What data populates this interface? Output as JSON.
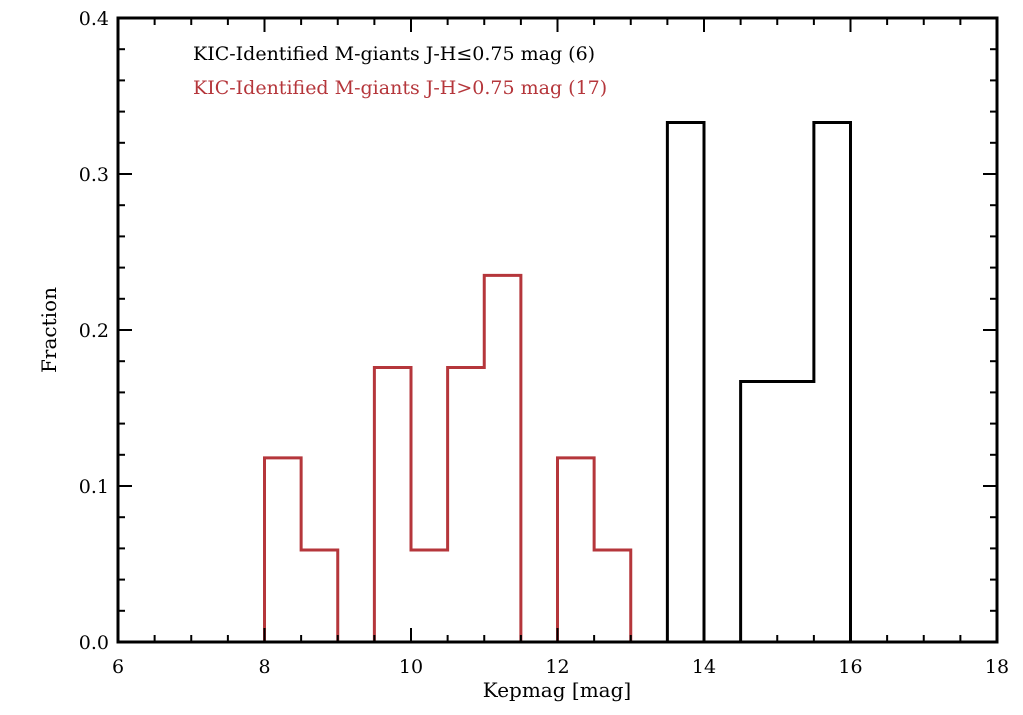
{
  "chart_data": {
    "type": "histogram",
    "xlabel": "Kepmag [mag]",
    "ylabel": "Fraction",
    "xlim": [
      6,
      18
    ],
    "ylim": [
      0,
      0.4
    ],
    "x_major_ticks": [
      6,
      8,
      10,
      12,
      14,
      16,
      18
    ],
    "x_minor_step": 0.5,
    "y_major_ticks": [
      0.0,
      0.1,
      0.2,
      0.3,
      0.4
    ],
    "y_minor_step": 0.02,
    "x_tick_labels": [
      "6",
      "8",
      "10",
      "12",
      "14",
      "16",
      "18"
    ],
    "y_tick_labels": [
      "0.0",
      "0.1",
      "0.2",
      "0.3",
      "0.4"
    ],
    "bin_width": 0.5,
    "grid": false,
    "legend_position": "top-left",
    "series": [
      {
        "name": "KIC-Identified M-giants J-H≤0.75 mag (6)",
        "color": "#000000",
        "bins": [
          {
            "x_start": 13.5,
            "x_end": 14.0,
            "value": 0.333
          },
          {
            "x_start": 14.0,
            "x_end": 14.5,
            "value": 0.0
          },
          {
            "x_start": 14.5,
            "x_end": 15.0,
            "value": 0.167
          },
          {
            "x_start": 15.0,
            "x_end": 15.5,
            "value": 0.167
          },
          {
            "x_start": 15.5,
            "x_end": 16.0,
            "value": 0.333
          }
        ]
      },
      {
        "name": "KIC-Identified M-giants J-H>0.75 mag (17)",
        "color": "#b5363b",
        "bins": [
          {
            "x_start": 8.0,
            "x_end": 8.5,
            "value": 0.118
          },
          {
            "x_start": 8.5,
            "x_end": 9.0,
            "value": 0.059
          },
          {
            "x_start": 9.0,
            "x_end": 9.5,
            "value": 0.0
          },
          {
            "x_start": 9.5,
            "x_end": 10.0,
            "value": 0.176
          },
          {
            "x_start": 10.0,
            "x_end": 10.5,
            "value": 0.059
          },
          {
            "x_start": 10.5,
            "x_end": 11.0,
            "value": 0.176
          },
          {
            "x_start": 11.0,
            "x_end": 11.5,
            "value": 0.235
          },
          {
            "x_start": 11.5,
            "x_end": 12.0,
            "value": 0.0
          },
          {
            "x_start": 12.0,
            "x_end": 12.5,
            "value": 0.118
          },
          {
            "x_start": 12.5,
            "x_end": 13.0,
            "value": 0.059
          }
        ]
      }
    ]
  }
}
